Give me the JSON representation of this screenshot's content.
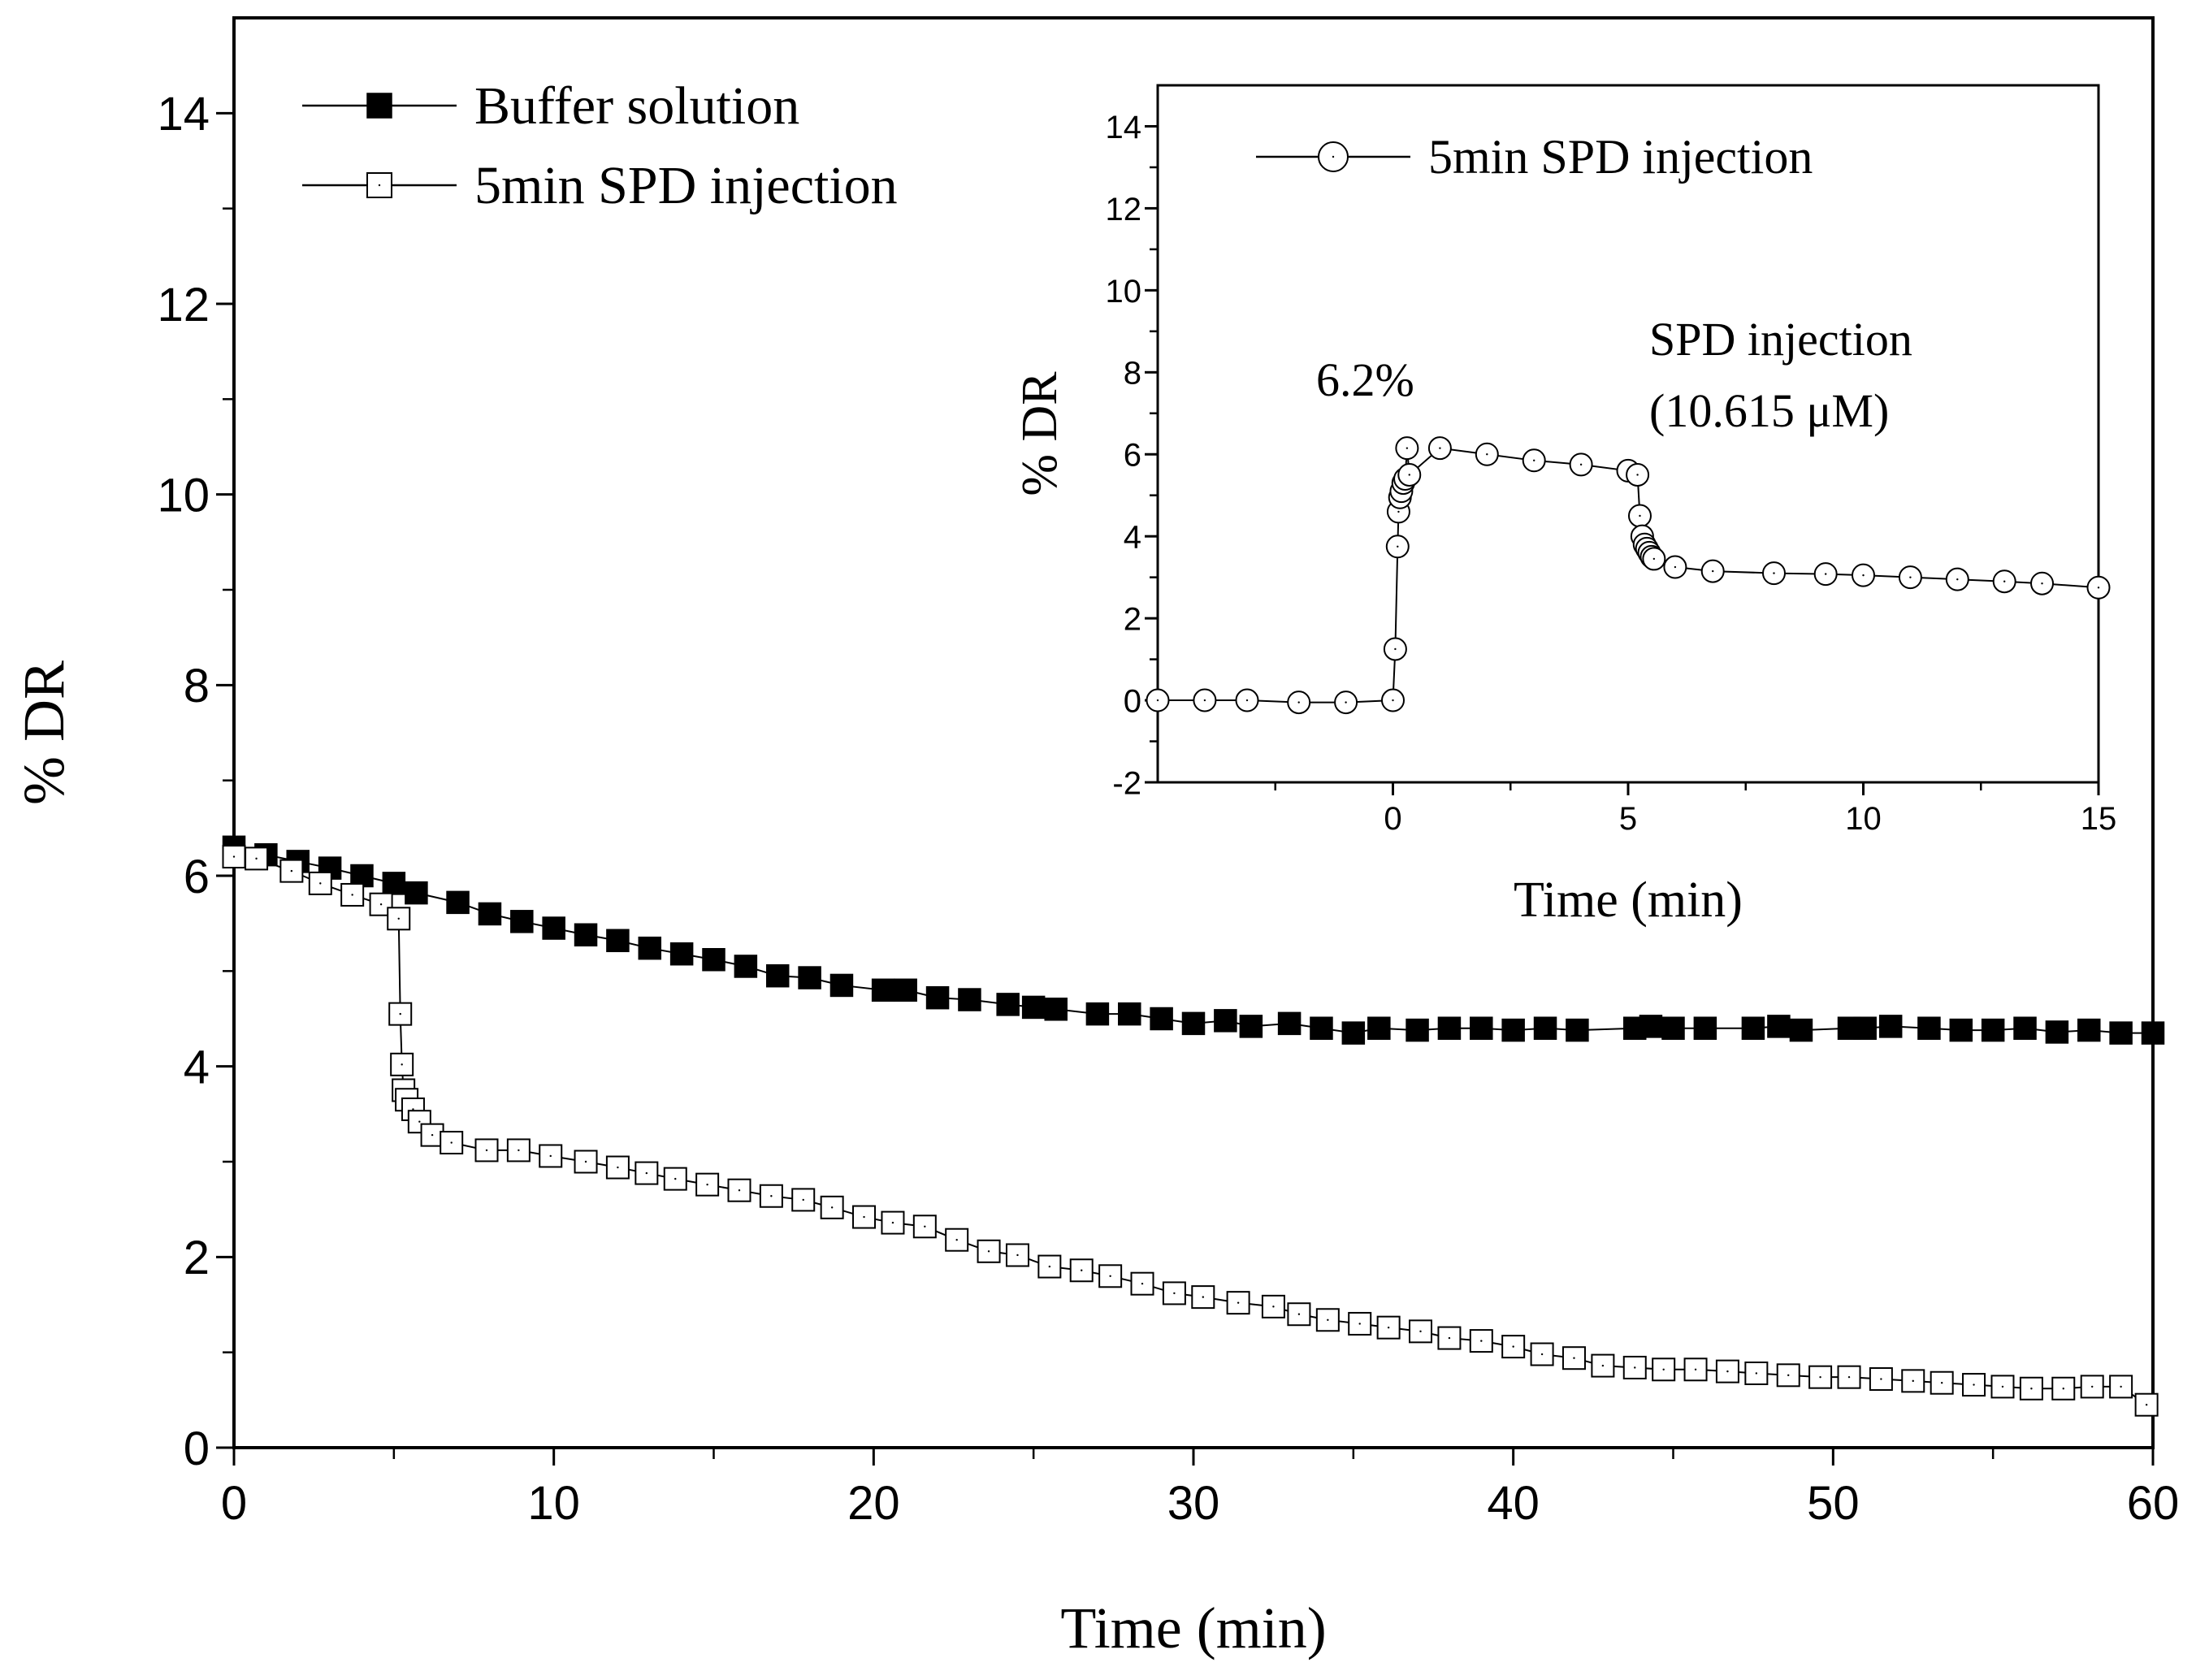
{
  "chart_data": [
    {
      "id": "main",
      "type": "scatter",
      "xlabel": "Time (min)",
      "ylabel": "% DR",
      "xlim": [
        0,
        60
      ],
      "ylim": [
        0,
        15
      ],
      "xticks": [
        "0",
        "10",
        "20",
        "30",
        "40",
        "50",
        "60"
      ],
      "yticks": [
        "0",
        "2",
        "4",
        "6",
        "8",
        "10",
        "12",
        "14"
      ],
      "grid": false,
      "legend_position": "top-left",
      "series": [
        {
          "name": "Buffer solution",
          "marker": "filled-square",
          "x": [
            0,
            1,
            2,
            3,
            4,
            5,
            5.7,
            7,
            8,
            9,
            10,
            11,
            12,
            13,
            14,
            15,
            16,
            17,
            18,
            19,
            20.3,
            21,
            22,
            23,
            24.2,
            25,
            25.7,
            27,
            28,
            29,
            30,
            31,
            31.8,
            33,
            34,
            35,
            35.8,
            37,
            38,
            39,
            40,
            41,
            42,
            43.8,
            44.3,
            45,
            46,
            47.5,
            48.3,
            49,
            50.5,
            51,
            51.8,
            53,
            54,
            55,
            56,
            57,
            58,
            59,
            60
          ],
          "y": [
            6.3,
            6.22,
            6.15,
            6.08,
            6.0,
            5.92,
            5.82,
            5.72,
            5.6,
            5.52,
            5.45,
            5.38,
            5.32,
            5.24,
            5.18,
            5.12,
            5.05,
            4.95,
            4.93,
            4.85,
            4.8,
            4.8,
            4.72,
            4.7,
            4.65,
            4.62,
            4.6,
            4.55,
            4.55,
            4.5,
            4.45,
            4.48,
            4.42,
            4.45,
            4.4,
            4.35,
            4.4,
            4.38,
            4.4,
            4.4,
            4.38,
            4.4,
            4.38,
            4.4,
            4.42,
            4.4,
            4.4,
            4.4,
            4.42,
            4.38,
            4.4,
            4.4,
            4.42,
            4.4,
            4.38,
            4.38,
            4.4,
            4.36,
            4.38,
            4.35,
            4.35
          ]
        },
        {
          "name": "5min SPD injection",
          "marker": "open-square",
          "x": [
            0,
            0.7,
            1.8,
            2.7,
            3.7,
            4.6,
            5.15,
            5.2,
            5.25,
            5.3,
            5.4,
            5.6,
            5.8,
            6.2,
            6.8,
            7.9,
            8.9,
            9.9,
            11.0,
            12.0,
            12.9,
            13.8,
            14.8,
            15.8,
            16.8,
            17.8,
            18.7,
            19.7,
            20.6,
            21.6,
            22.6,
            23.6,
            24.5,
            25.5,
            26.5,
            27.4,
            28.4,
            29.4,
            30.3,
            31.4,
            32.5,
            33.3,
            34.2,
            35.2,
            36.1,
            37.1,
            38.0,
            39.0,
            40.0,
            40.9,
            41.9,
            42.8,
            43.8,
            44.7,
            45.7,
            46.7,
            47.6,
            48.6,
            49.6,
            50.5,
            51.5,
            52.5,
            53.4,
            54.4,
            55.3,
            56.2,
            57.2,
            58.1,
            59.0,
            59.8
          ],
          "y": [
            6.2,
            6.18,
            6.05,
            5.92,
            5.8,
            5.7,
            5.55,
            4.55,
            4.02,
            3.75,
            3.65,
            3.55,
            3.42,
            3.28,
            3.2,
            3.12,
            3.12,
            3.06,
            3.0,
            2.94,
            2.88,
            2.82,
            2.76,
            2.7,
            2.64,
            2.6,
            2.52,
            2.42,
            2.36,
            2.32,
            2.18,
            2.06,
            2.02,
            1.9,
            1.86,
            1.8,
            1.72,
            1.62,
            1.58,
            1.52,
            1.48,
            1.4,
            1.34,
            1.3,
            1.26,
            1.22,
            1.15,
            1.12,
            1.06,
            0.98,
            0.94,
            0.86,
            0.84,
            0.82,
            0.82,
            0.8,
            0.78,
            0.76,
            0.74,
            0.74,
            0.72,
            0.7,
            0.68,
            0.66,
            0.64,
            0.62,
            0.62,
            0.64,
            0.64,
            0.45
          ]
        }
      ]
    },
    {
      "id": "inset",
      "type": "scatter",
      "xlabel": "Time (min)",
      "ylabel": "% DR",
      "xlim": [
        -5,
        15
      ],
      "ylim": [
        -2,
        15
      ],
      "xticks": [
        "0",
        "5",
        "10",
        "15"
      ],
      "yticks": [
        "-2",
        "0",
        "2",
        "4",
        "6",
        "8",
        "10",
        "12",
        "14"
      ],
      "grid": false,
      "legend_position": "top-left",
      "annotations": [
        "6.2%",
        "SPD injection",
        "(10.615 μM)"
      ],
      "series": [
        {
          "name": "5min SPD injection",
          "marker": "open-circle",
          "x": [
            -5,
            -4,
            -3.1,
            -2,
            -1,
            0,
            0.05,
            0.1,
            0.12,
            0.15,
            0.18,
            0.22,
            0.26,
            0.3,
            0.35,
            1,
            2,
            3,
            4,
            5,
            5.2,
            5.25,
            5.3,
            5.35,
            5.4,
            5.45,
            5.5,
            5.55,
            6,
            6.8,
            8.1,
            9.2,
            10,
            11,
            12,
            13,
            13.8,
            15
          ],
          "y": [
            0,
            0,
            0,
            -0.05,
            -0.05,
            0,
            1.25,
            3.75,
            4.6,
            4.95,
            5.1,
            5.3,
            5.4,
            6.15,
            5.5,
            6.15,
            6.0,
            5.85,
            5.75,
            5.6,
            5.5,
            4.5,
            4.0,
            3.8,
            3.7,
            3.6,
            3.5,
            3.45,
            3.25,
            3.15,
            3.1,
            3.08,
            3.05,
            3.0,
            2.95,
            2.9,
            2.85,
            2.75
          ]
        }
      ]
    }
  ]
}
